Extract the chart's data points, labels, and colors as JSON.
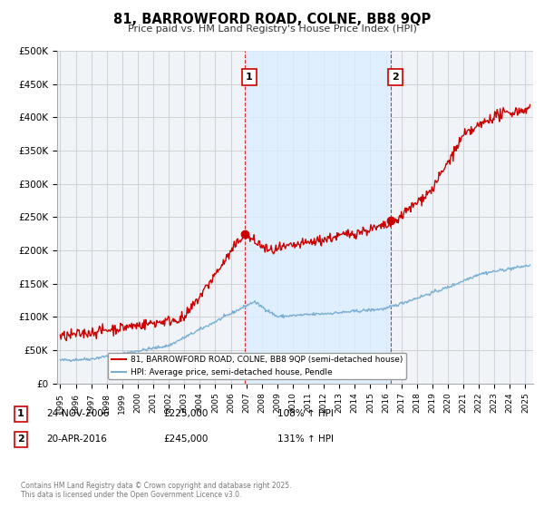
{
  "title": "81, BARROWFORD ROAD, COLNE, BB8 9QP",
  "subtitle": "Price paid vs. HM Land Registry's House Price Index (HPI)",
  "ylabel_ticks": [
    "£0",
    "£50K",
    "£100K",
    "£150K",
    "£200K",
    "£250K",
    "£300K",
    "£350K",
    "£400K",
    "£450K",
    "£500K"
  ],
  "ytick_values": [
    0,
    50000,
    100000,
    150000,
    200000,
    250000,
    300000,
    350000,
    400000,
    450000,
    500000
  ],
  "ylim": [
    0,
    500000
  ],
  "xlim_start": 1994.8,
  "xlim_end": 2025.5,
  "hpi_color": "#7aafd4",
  "price_color": "#cc0000",
  "shade_color": "#ddeeff",
  "marker1_date": 2006.9,
  "marker1_price": 225000,
  "marker1_label": "1",
  "marker2_date": 2016.3,
  "marker2_price": 245000,
  "marker2_label": "2",
  "legend_label1": "81, BARROWFORD ROAD, COLNE, BB8 9QP (semi-detached house)",
  "legend_label2": "HPI: Average price, semi-detached house, Pendle",
  "footer": "Contains HM Land Registry data © Crown copyright and database right 2025.\nThis data is licensed under the Open Government Licence v3.0.",
  "background_color": "#f0f4f8",
  "grid_color": "#cccccc",
  "row1_date": "24-NOV-2006",
  "row1_price": "£225,000",
  "row1_hpi": "108% ↑ HPI",
  "row2_date": "20-APR-2016",
  "row2_price": "£245,000",
  "row2_hpi": "131% ↑ HPI"
}
